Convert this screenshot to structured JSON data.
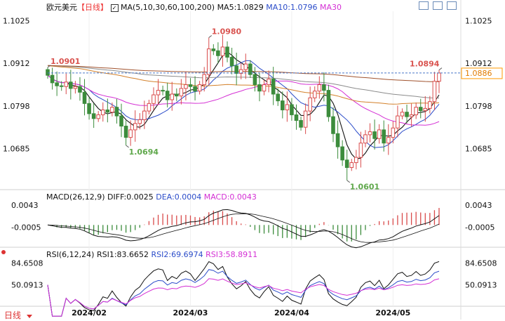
{
  "header": {
    "symbol": "欧元美元",
    "period": "【日线】",
    "ma_label": "MA(5,10,30,60,100,200)",
    "ma5": "MA5:1.0829",
    "ma10": "MA10:1.0796",
    "ma30": "MA30"
  },
  "macd_header": {
    "label": "MACD(26,12,9)",
    "diff": "DIFF:0.0025",
    "dea": "DEA:0.0004",
    "macd": "MACD:0.0043"
  },
  "rsi_header": {
    "label": "RSI(6,12,24)",
    "rsi1": "RSI1:83.6652",
    "rsi2": "RSI2:69.6974",
    "rsi3": "RSI3:58.8911"
  },
  "footer": {
    "period_label": "日线"
  },
  "colors": {
    "up": "#d94b4b",
    "down": "#3c8c3c",
    "ma5": "#111111",
    "ma10": "#2b4cc9",
    "ma30": "#d42fd4",
    "ma60": "#d3802a",
    "ma100": "#8c8c8c",
    "ma200": "#a0522d",
    "current_price_box": "#ff9900"
  },
  "chart_data": {
    "type": "candlestick",
    "x_ticks": [
      "2024/02",
      "2024/03",
      "2024/04",
      "2024/05"
    ],
    "price_ticks": [
      1.1025,
      1.0912,
      1.0798,
      1.0685
    ],
    "price_range": [
      1.058,
      1.105
    ],
    "current_price": 1.0886,
    "annotations": [
      {
        "label": "1.0901",
        "value": 1.0901,
        "type": "high"
      },
      {
        "label": "1.0694",
        "value": 1.0694,
        "type": "low"
      },
      {
        "label": "1.0980",
        "value": 1.098,
        "type": "high"
      },
      {
        "label": "1.0601",
        "value": 1.0601,
        "type": "low"
      },
      {
        "label": "1.0894",
        "value": 1.0894,
        "type": "high"
      }
    ],
    "close": [
      1.088,
      1.086,
      1.0852,
      1.085,
      1.0862,
      1.0845,
      1.085,
      1.0835,
      1.0805,
      1.0778,
      1.0765,
      1.0775,
      1.0788,
      1.0782,
      1.0795,
      1.0772,
      1.0745,
      1.0715,
      1.0735,
      1.0752,
      1.0762,
      1.0785,
      1.0805,
      1.0828,
      1.084,
      1.0838,
      1.0815,
      1.083,
      1.0825,
      1.0845,
      1.0855,
      1.085,
      1.0838,
      1.0855,
      1.0882,
      1.095,
      1.0945,
      1.0932,
      1.0955,
      1.0928,
      1.0905,
      1.0885,
      1.0895,
      1.091,
      1.0882,
      1.0855,
      1.0838,
      1.0855,
      1.087,
      1.083,
      1.0812,
      1.0788,
      1.0802,
      1.0775,
      1.076,
      1.0742,
      1.0785,
      1.082,
      1.0838,
      1.0855,
      1.084,
      1.077,
      1.0725,
      1.069,
      1.0655,
      1.0635,
      1.0648,
      1.0662,
      1.07,
      1.0722,
      1.073,
      1.0712,
      1.0735,
      1.07,
      1.0715,
      1.074,
      1.0772,
      1.0782,
      1.077,
      1.0775,
      1.0795,
      1.0786,
      1.0792,
      1.081,
      1.0864,
      1.0886
    ],
    "indicators": {
      "macd": {
        "ticks": [
          0.0043,
          -0.0005
        ],
        "range": [
          -0.0045,
          0.0055
        ]
      },
      "rsi": {
        "ticks": [
          84.6508,
          50.0913
        ],
        "range": [
          18,
          92
        ]
      }
    }
  }
}
